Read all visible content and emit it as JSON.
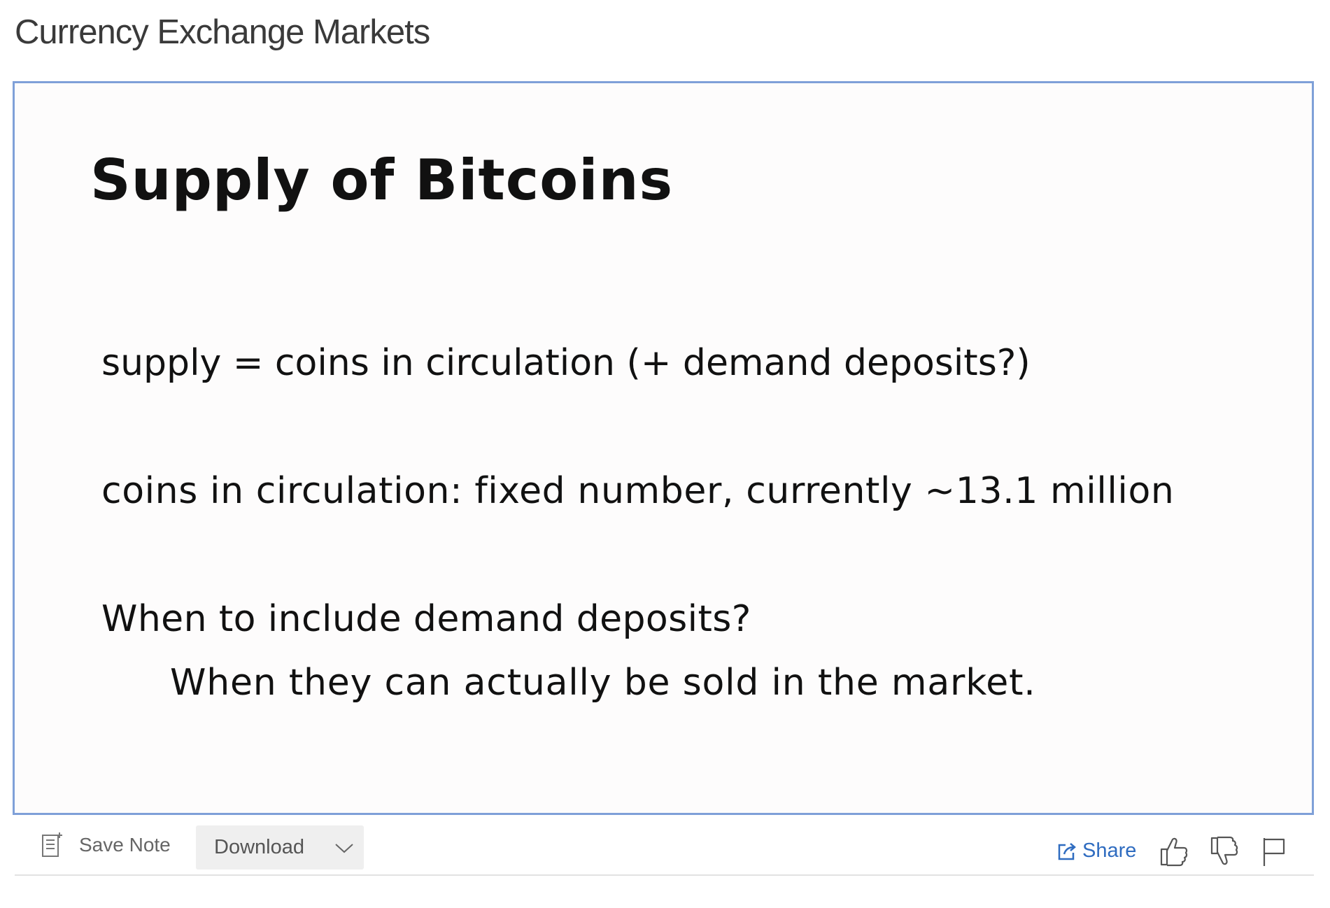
{
  "header": {
    "title": "Currency Exchange Markets"
  },
  "slide": {
    "title": "Supply of Bitcoins",
    "lines": [
      "supply = coins in circulation (+ demand deposits?)",
      "coins in circulation: fixed number, currently ~13.1 million",
      "When to include demand deposits?",
      "When they can actually be sold in the market."
    ]
  },
  "toolbar": {
    "save_note_label": "Save Note",
    "download_label": "Download",
    "share_label": "Share",
    "icons": {
      "save_note": "note-icon",
      "download_dropdown": "chevron-down-icon",
      "share": "share-icon",
      "like": "thumbs-up-icon",
      "dislike": "thumbs-down-icon",
      "report": "flag-icon"
    },
    "colors": {
      "share": "#2f6cc0",
      "frame_border": "#7fa0d8"
    }
  }
}
